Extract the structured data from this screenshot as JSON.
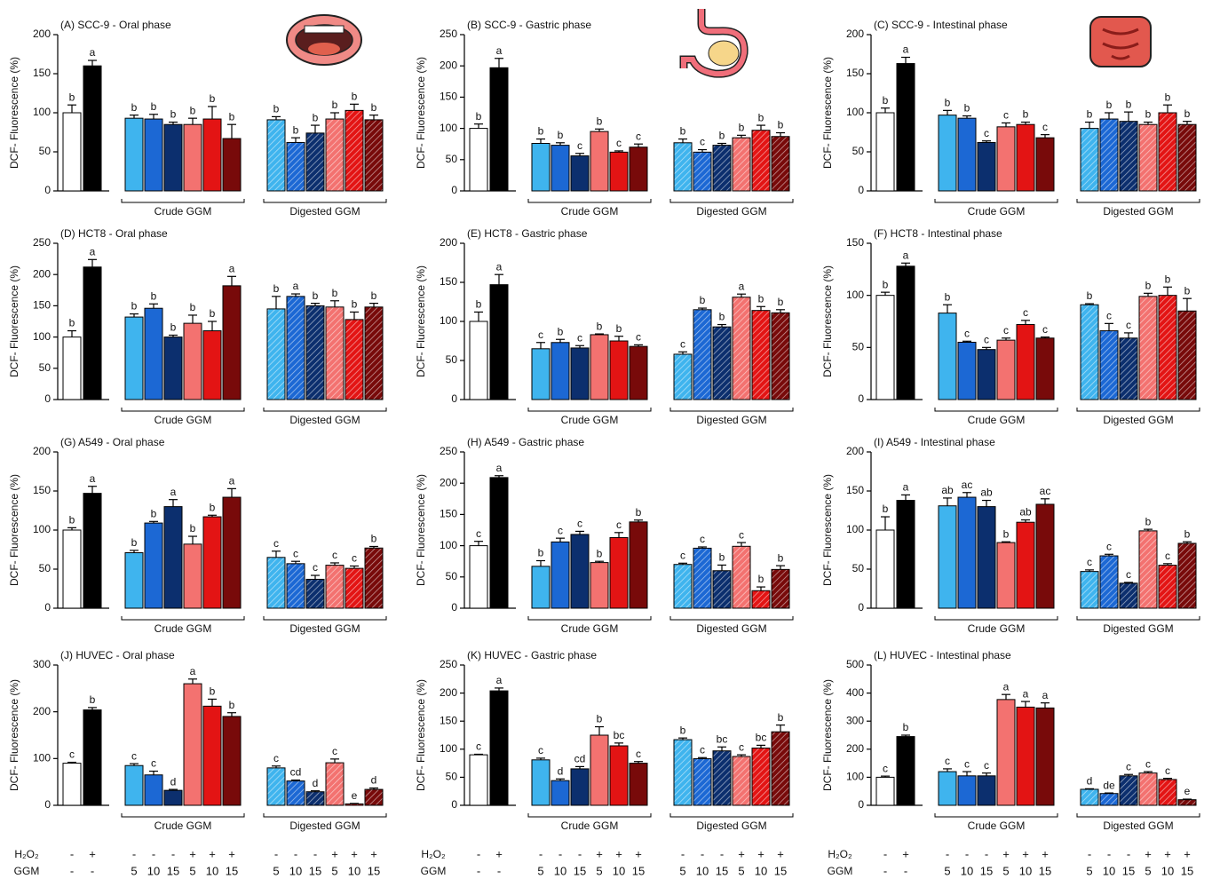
{
  "chart_data": [
    {
      "type": "bar",
      "title": "(A) SCC-9 - Oral phase",
      "ylabel": "DCF- Fluorescence (%)",
      "ylim": [
        0,
        200
      ],
      "yticks": [
        0,
        50,
        100,
        150,
        200
      ],
      "groups": [
        "Crude GGM",
        "Digested GGM"
      ],
      "values": [
        100,
        160,
        93,
        92,
        85,
        85,
        92,
        67,
        91,
        62,
        74,
        92,
        103,
        91
      ],
      "errors": [
        10,
        7,
        4,
        6,
        3,
        8,
        16,
        18,
        4,
        6,
        10,
        8,
        8,
        6
      ],
      "letters": [
        "b",
        "a",
        "b",
        "b",
        "b",
        "b",
        "b",
        "b",
        "b",
        "b",
        "b",
        "b",
        "b",
        "b"
      ]
    },
    {
      "type": "bar",
      "title": "(B) SCC-9 - Gastric phase",
      "ylabel": "DCF- Fluorescence (%)",
      "ylim": [
        0,
        250
      ],
      "yticks": [
        0,
        50,
        100,
        150,
        200,
        250
      ],
      "groups": [
        "Crude GGM",
        "Digested GGM"
      ],
      "values": [
        100,
        197,
        76,
        73,
        56,
        95,
        62,
        70,
        77,
        62,
        73,
        85,
        97,
        87
      ],
      "errors": [
        7,
        15,
        7,
        4,
        4,
        4,
        2,
        5,
        6,
        4,
        3,
        4,
        8,
        6
      ],
      "letters": [
        "b",
        "a",
        "b",
        "b",
        "c",
        "b",
        "c",
        "c",
        "b",
        "c",
        "b",
        "b",
        "b",
        "b"
      ]
    },
    {
      "type": "bar",
      "title": "(C) SCC-9 - Intestinal phase",
      "ylabel": "DCF- Fluorescence (%)",
      "ylim": [
        0,
        200
      ],
      "yticks": [
        0,
        50,
        100,
        150,
        200
      ],
      "groups": [
        "Crude GGM",
        "Digested GGM"
      ],
      "values": [
        100,
        163,
        97,
        93,
        62,
        82,
        85,
        68,
        80,
        92,
        89,
        85,
        100,
        85
      ],
      "errors": [
        6,
        8,
        6,
        3,
        2,
        5,
        3,
        4,
        8,
        8,
        12,
        3,
        10,
        4
      ],
      "letters": [
        "b",
        "a",
        "b",
        "b",
        "c",
        "c",
        "b",
        "c",
        "b",
        "b",
        "b",
        "b",
        "b",
        "b"
      ]
    },
    {
      "type": "bar",
      "title": "(D) HCT8 - Oral phase",
      "ylabel": "DCF- Fluorescence (%)",
      "ylim": [
        0,
        250
      ],
      "yticks": [
        0,
        50,
        100,
        150,
        200,
        250
      ],
      "groups": [
        "Crude GGM",
        "Digested GGM"
      ],
      "values": [
        100,
        212,
        132,
        146,
        100,
        122,
        110,
        182,
        145,
        165,
        150,
        148,
        128,
        148
      ],
      "errors": [
        10,
        12,
        5,
        7,
        3,
        13,
        15,
        15,
        20,
        4,
        4,
        10,
        12,
        6
      ],
      "letters": [
        "b",
        "a",
        "b",
        "b",
        "b",
        "b",
        "b",
        "a",
        "b",
        "a",
        "b",
        "b",
        "b",
        "b"
      ]
    },
    {
      "type": "bar",
      "title": "(E) HCT8 - Gastric phase",
      "ylabel": "DCF- Fluorescence (%)",
      "ylim": [
        0,
        200
      ],
      "yticks": [
        0,
        50,
        100,
        150,
        200
      ],
      "groups": [
        "Crude GGM",
        "Digested GGM"
      ],
      "values": [
        100,
        147,
        65,
        73,
        66,
        83,
        75,
        68,
        58,
        115,
        93,
        131,
        114,
        111
      ],
      "errors": [
        12,
        13,
        8,
        4,
        3,
        1,
        6,
        2,
        3,
        2,
        3,
        4,
        5,
        4
      ],
      "letters": [
        "b",
        "a",
        "c",
        "b",
        "c",
        "b",
        "b",
        "c",
        "c",
        "b",
        "b",
        "a",
        "b",
        "b"
      ]
    },
    {
      "type": "bar",
      "title": "(F) HCT8 - Intestinal phase",
      "ylabel": "DCF- Fluorescence (%)",
      "ylim": [
        0,
        150
      ],
      "yticks": [
        0,
        50,
        100,
        150
      ],
      "groups": [
        "Crude GGM",
        "Digested GGM"
      ],
      "values": [
        100,
        128,
        83,
        55,
        48,
        57,
        72,
        59,
        91,
        66,
        59,
        99,
        100,
        85
      ],
      "errors": [
        3,
        3,
        8,
        1,
        2,
        2,
        4,
        1,
        1,
        7,
        5,
        3,
        8,
        12
      ],
      "letters": [
        "b",
        "a",
        "b",
        "c",
        "c",
        "c",
        "c",
        "c",
        "b",
        "c",
        "c",
        "b",
        "b",
        "b"
      ]
    },
    {
      "type": "bar",
      "title": "(G) A549 - Oral phase",
      "ylabel": "DCF- Fluorescence (%)",
      "ylim": [
        0,
        200
      ],
      "yticks": [
        0,
        50,
        100,
        150,
        200
      ],
      "groups": [
        "Crude GGM",
        "Digested GGM"
      ],
      "values": [
        100,
        147,
        71,
        109,
        130,
        82,
        117,
        142,
        65,
        57,
        37,
        55,
        51,
        77
      ],
      "errors": [
        3,
        9,
        3,
        2,
        9,
        10,
        2,
        11,
        8,
        3,
        5,
        3,
        3,
        2
      ],
      "letters": [
        "b",
        "a",
        "b",
        "b",
        "a",
        "b",
        "b",
        "a",
        "c",
        "c",
        "c",
        "c",
        "c",
        "b"
      ]
    },
    {
      "type": "bar",
      "title": "(H) A549 - Gastric phase",
      "ylabel": "DCF- Fluorescence (%)",
      "ylim": [
        0,
        250
      ],
      "yticks": [
        0,
        50,
        100,
        150,
        200,
        250
      ],
      "groups": [
        "Crude GGM",
        "Digested GGM"
      ],
      "values": [
        100,
        209,
        67,
        106,
        118,
        73,
        113,
        138,
        70,
        96,
        60,
        99,
        28,
        62
      ],
      "errors": [
        7,
        3,
        9,
        6,
        5,
        2,
        8,
        3,
        2,
        2,
        9,
        6,
        6,
        6
      ],
      "letters": [
        "c",
        "a",
        "b",
        "c",
        "c",
        "b",
        "c",
        "b",
        "c",
        "c",
        "b",
        "c",
        "b",
        "b"
      ]
    },
    {
      "type": "bar",
      "title": "(I) A549 - Intestinal phase",
      "ylabel": "DCF- Fluorescence (%)",
      "ylim": [
        0,
        200
      ],
      "yticks": [
        0,
        50,
        100,
        150,
        200
      ],
      "groups": [
        "Crude GGM",
        "Digested GGM"
      ],
      "values": [
        100,
        138,
        131,
        142,
        130,
        84,
        110,
        133,
        47,
        67,
        32,
        99,
        55,
        83
      ],
      "errors": [
        17,
        7,
        10,
        6,
        8,
        1,
        3,
        7,
        2,
        2,
        1,
        2,
        2,
        2
      ],
      "letters": [
        "b",
        "a",
        "ab",
        "ac",
        "ab",
        "b",
        "ab",
        "ac",
        "c",
        "c",
        "c",
        "b",
        "c",
        "b"
      ]
    },
    {
      "type": "bar",
      "title": "(J) HUVEC - Oral phase",
      "ylabel": "DCF- Fluorescence (%)",
      "ylim": [
        0,
        300
      ],
      "yticks": [
        0,
        100,
        200,
        300
      ],
      "groups": [
        "Crude GGM",
        "Digested GGM"
      ],
      "values": [
        90,
        204,
        85,
        65,
        32,
        260,
        212,
        190,
        80,
        52,
        29,
        91,
        3,
        34
      ],
      "errors": [
        2,
        5,
        4,
        8,
        2,
        10,
        15,
        8,
        4,
        2,
        2,
        8,
        1,
        3
      ],
      "letters": [
        "c",
        "b",
        "c",
        "c",
        "d",
        "a",
        "b",
        "b",
        "c",
        "cd",
        "d",
        "c",
        "e",
        "d"
      ]
    },
    {
      "type": "bar",
      "title": "(K) HUVEC - Gastric phase",
      "ylabel": "DCF- Fluorescence (%)",
      "ylim": [
        0,
        250
      ],
      "yticks": [
        0,
        50,
        100,
        150,
        200,
        250
      ],
      "groups": [
        "Crude GGM",
        "Digested GGM"
      ],
      "values": [
        90,
        204,
        81,
        44,
        65,
        125,
        106,
        75,
        117,
        83,
        97,
        87,
        102,
        131
      ],
      "errors": [
        1,
        5,
        3,
        3,
        4,
        15,
        5,
        3,
        3,
        2,
        7,
        3,
        5,
        12
      ],
      "letters": [
        "c",
        "a",
        "c",
        "d",
        "cd",
        "b",
        "bc",
        "c",
        "b",
        "c",
        "bc",
        "c",
        "bc",
        "b"
      ]
    },
    {
      "type": "bar",
      "title": "(L) HUVEC - Intestinal phase",
      "ylabel": "DCF- Fluorescence (%)",
      "ylim": [
        0,
        500
      ],
      "yticks": [
        0,
        100,
        200,
        300,
        400,
        500
      ],
      "groups": [
        "Crude GGM",
        "Digested GGM"
      ],
      "values": [
        100,
        245,
        120,
        105,
        105,
        377,
        350,
        347,
        57,
        42,
        105,
        115,
        92,
        20
      ],
      "errors": [
        4,
        5,
        10,
        15,
        10,
        18,
        20,
        18,
        2,
        2,
        5,
        5,
        4,
        2
      ],
      "letters": [
        "c",
        "b",
        "c",
        "c",
        "c",
        "a",
        "a",
        "a",
        "d",
        "de",
        "c",
        "c",
        "c",
        "e"
      ]
    }
  ],
  "bar_colors": [
    "#ffffff",
    "#000000",
    "#3fb4ee",
    "#1c68d4",
    "#0c2f6e",
    "#f37270",
    "#e31414",
    "#780a0a",
    "#3fb4ee",
    "#1c68d4",
    "#0c2f6e",
    "#f37270",
    "#e31414",
    "#780a0a"
  ],
  "hatched": [
    false,
    false,
    false,
    false,
    false,
    false,
    false,
    false,
    true,
    true,
    true,
    true,
    true,
    true
  ],
  "treatments": [
    {
      "label": "H₂O₂",
      "cells": [
        "-",
        "+",
        "-",
        "-",
        "-",
        "+",
        "+",
        "+",
        "-",
        "-",
        "-",
        "+",
        "+",
        "+"
      ]
    },
    {
      "label": "GGM",
      "cells": [
        "-",
        "-",
        "5",
        "10",
        "15",
        "5",
        "10",
        "15",
        "5",
        "10",
        "15",
        "5",
        "10",
        "15"
      ]
    }
  ]
}
